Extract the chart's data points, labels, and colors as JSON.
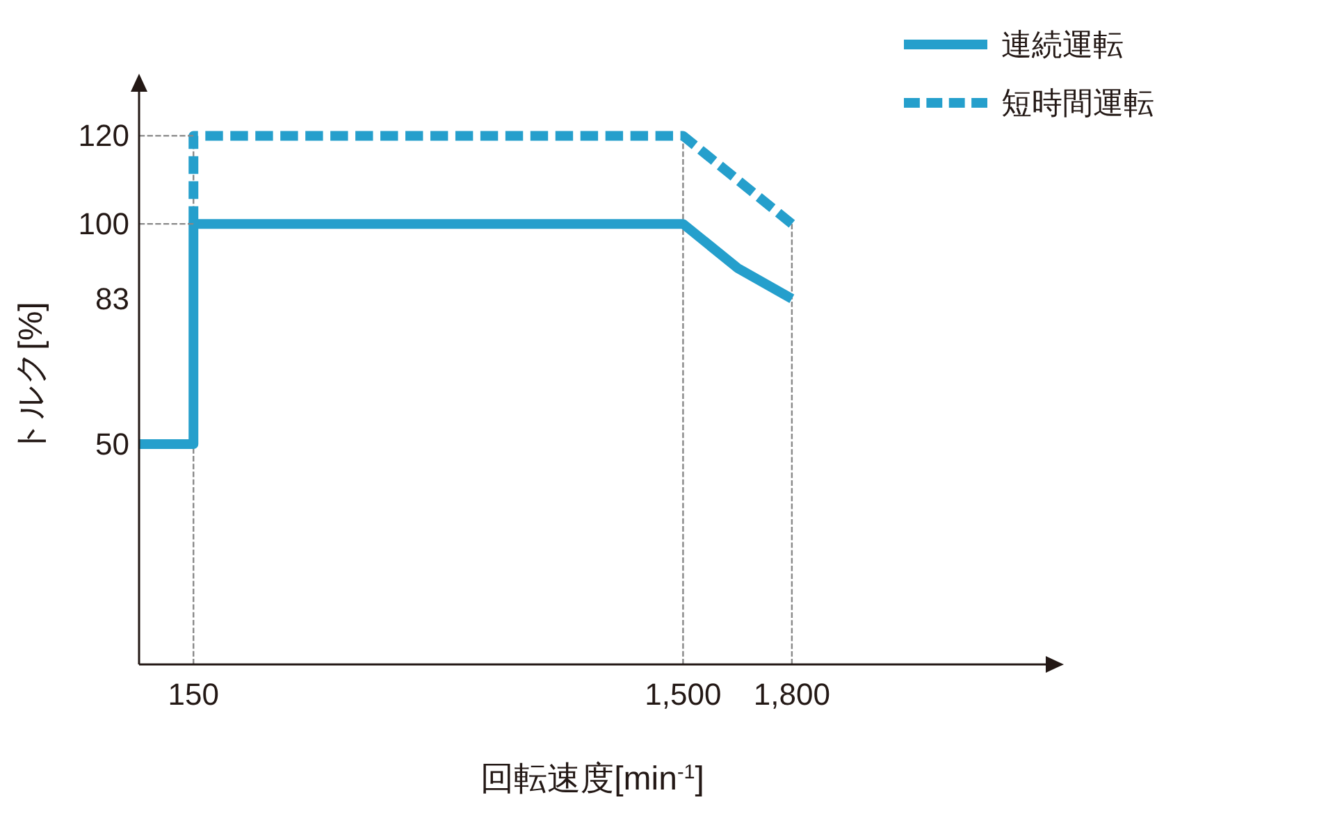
{
  "chart_data": {
    "type": "line",
    "xlabel": "回転速度[min$^{-1}$]",
    "ylabel": "トルク[%]",
    "xlim": [
      0,
      2500
    ],
    "ylim": [
      0,
      130
    ],
    "xticks": [
      150,
      {
        "value": 1500,
        "label": "1,500"
      },
      {
        "value": 1800,
        "label": "1,800"
      }
    ],
    "yticks": [
      50,
      83,
      100,
      120
    ],
    "series": [
      {
        "name": "連続運転",
        "color": "#259fcc",
        "line_style": "solid",
        "x": [
          0,
          150,
          150,
          1500,
          1650,
          1800
        ],
        "values": [
          50,
          50,
          100,
          100,
          90,
          83
        ]
      },
      {
        "name": "短時間運転",
        "color": "#259fcc",
        "line_style": "dashed",
        "x": [
          150,
          150,
          1500,
          1800
        ],
        "values": [
          100,
          120,
          120,
          100
        ]
      },
      {
        "color": "#888888",
        "line_style": "dashed",
        "x": [
          0,
          150
        ],
        "values": [
          120,
          120
        ]
      },
      {
        "color": "#888888",
        "line_style": "dashed",
        "x": [
          0,
          150
        ],
        "values": [
          100,
          100
        ]
      }
    ],
    "ref_lines": [
      {
        "axis": "x",
        "value": 150,
        "color": "#888888",
        "line_style": "dashed"
      },
      {
        "axis": "x",
        "value": 1500,
        "color": "#888888",
        "line_style": "dashed"
      },
      {
        "axis": "x",
        "value": 1800,
        "color": "#888888",
        "line_style": "dashed"
      }
    ],
    "legend": "top right"
  }
}
